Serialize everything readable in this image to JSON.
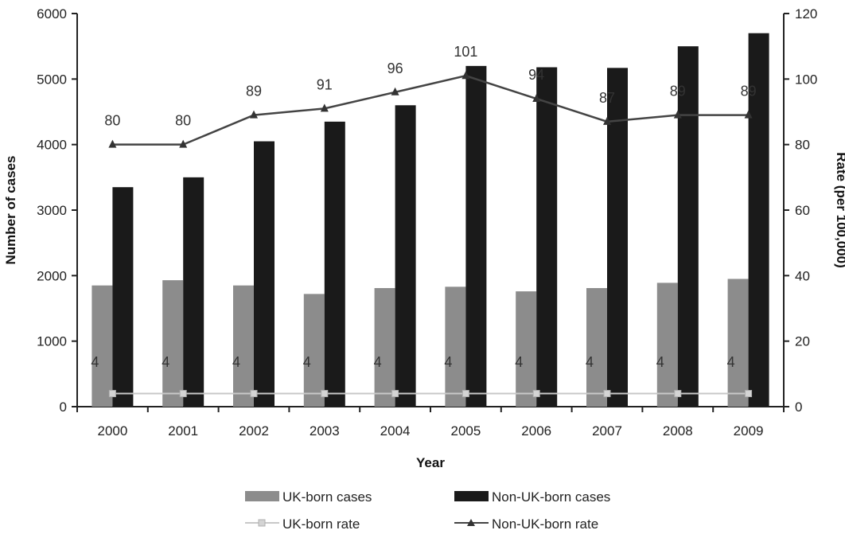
{
  "chart_data": {
    "type": "bar",
    "categories": [
      "2000",
      "2001",
      "2002",
      "2003",
      "2004",
      "2005",
      "2006",
      "2007",
      "2008",
      "2009"
    ],
    "series": [
      {
        "name": "UK-born cases",
        "kind": "bar",
        "axis": "left",
        "color": "#8c8c8c",
        "values": [
          1850,
          1930,
          1850,
          1720,
          1810,
          1830,
          1760,
          1810,
          1890,
          1950
        ]
      },
      {
        "name": "Non-UK-born cases",
        "kind": "bar",
        "axis": "left",
        "color": "#1a1a1a",
        "values": [
          3350,
          3500,
          4050,
          4350,
          4600,
          5200,
          5180,
          5170,
          5500,
          5700
        ]
      },
      {
        "name": "UK-born rate",
        "kind": "line",
        "axis": "right",
        "color": "#c8c8c8",
        "marker": "square",
        "values": [
          4,
          4,
          4,
          4,
          4,
          4,
          4,
          4,
          4,
          4
        ],
        "labels": [
          "4",
          "4",
          "4",
          "4",
          "4",
          "4",
          "4",
          "4",
          "4",
          "4"
        ]
      },
      {
        "name": "Non-UK-born rate",
        "kind": "line",
        "axis": "right",
        "color": "#444444",
        "marker": "triangle",
        "values": [
          80,
          80,
          89,
          91,
          96,
          101,
          94,
          87,
          89,
          89
        ],
        "labels": [
          "80",
          "80",
          "89",
          "91",
          "96",
          "101",
          "94",
          "87",
          "89",
          "89"
        ]
      }
    ],
    "xlabel": "Year",
    "ylabel": "Number of cases",
    "y2label": "Rate (per 100,000)",
    "ylim": [
      0,
      6000
    ],
    "yticks": [
      "0",
      "1000",
      "2000",
      "3000",
      "4000",
      "5000",
      "6000"
    ],
    "y2lim": [
      0,
      120
    ],
    "y2ticks": [
      "0",
      "20",
      "40",
      "60",
      "80",
      "100",
      "120"
    ],
    "grid": false,
    "legend_position": "bottom"
  }
}
